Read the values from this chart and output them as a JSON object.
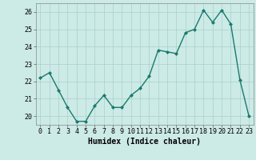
{
  "x": [
    0,
    1,
    2,
    3,
    4,
    5,
    6,
    7,
    8,
    9,
    10,
    11,
    12,
    13,
    14,
    15,
    16,
    17,
    18,
    19,
    20,
    21,
    22,
    23
  ],
  "y": [
    22.2,
    22.5,
    21.5,
    20.5,
    19.7,
    19.7,
    20.6,
    21.2,
    20.5,
    20.5,
    21.2,
    21.6,
    22.3,
    23.8,
    23.7,
    23.6,
    24.8,
    25.0,
    26.1,
    25.4,
    26.1,
    25.3,
    22.1,
    20.0
  ],
  "line_color": "#1a7a6e",
  "marker": "D",
  "marker_size": 2.0,
  "xlabel": "Humidex (Indice chaleur)",
  "xlim": [
    -0.5,
    23.5
  ],
  "ylim": [
    19.5,
    26.5
  ],
  "yticks": [
    20,
    21,
    22,
    23,
    24,
    25,
    26
  ],
  "xticks": [
    0,
    1,
    2,
    3,
    4,
    5,
    6,
    7,
    8,
    9,
    10,
    11,
    12,
    13,
    14,
    15,
    16,
    17,
    18,
    19,
    20,
    21,
    22,
    23
  ],
  "bg_color": "#cceae6",
  "grid_color": "#aacfcb",
  "line_width": 1.0,
  "xlabel_fontsize": 7,
  "tick_fontsize": 6
}
